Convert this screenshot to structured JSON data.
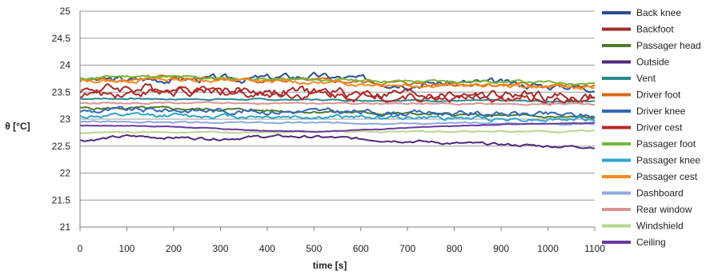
{
  "chart_data": {
    "type": "line",
    "title": "",
    "xlabel": "time [s]",
    "ylabel": "θ [°C]",
    "xlim": [
      0,
      1100
    ],
    "ylim": [
      21,
      25
    ],
    "xticks": [
      "0",
      "100",
      "200",
      "300",
      "400",
      "500",
      "600",
      "700",
      "800",
      "900",
      "1000",
      "1100"
    ],
    "yticks": [
      "21",
      "21.5",
      "22",
      "22.5",
      "23",
      "23.5",
      "24",
      "24.5",
      "25"
    ],
    "grid": "horizontal",
    "legend_position": "right",
    "x": [
      0,
      100,
      200,
      300,
      400,
      500,
      600,
      700,
      800,
      900,
      1000,
      1100
    ],
    "series": [
      {
        "name": "Back knee",
        "color": "#2b4d8f",
        "noise": 0.05,
        "values": [
          23.72,
          23.73,
          23.75,
          23.74,
          23.76,
          23.8,
          23.73,
          23.67,
          23.68,
          23.66,
          23.62,
          23.6
        ]
      },
      {
        "name": "Backfoot",
        "color": "#a02c2c",
        "noise": 0.07,
        "values": [
          23.55,
          23.58,
          23.56,
          23.54,
          23.52,
          23.5,
          23.48,
          23.47,
          23.45,
          23.44,
          23.42,
          23.4
        ]
      },
      {
        "name": "Passager head",
        "color": "#4f7d2a",
        "noise": 0.02,
        "values": [
          23.2,
          23.2,
          23.19,
          23.18,
          23.16,
          23.14,
          23.12,
          23.1,
          23.08,
          23.06,
          23.04,
          23.02
        ]
      },
      {
        "name": "Outside",
        "color": "#52287a",
        "noise": 0.02,
        "values": [
          22.6,
          22.68,
          22.66,
          22.64,
          22.68,
          22.67,
          22.63,
          22.6,
          22.55,
          22.53,
          22.5,
          22.49
        ]
      },
      {
        "name": "Vent",
        "color": "#2b8a8f",
        "noise": 0.01,
        "values": [
          23.38,
          23.38,
          23.37,
          23.37,
          23.36,
          23.36,
          23.35,
          23.35,
          23.34,
          23.34,
          23.33,
          23.33
        ]
      },
      {
        "name": "Driver foot",
        "color": "#d66a1a",
        "noise": 0.03,
        "values": [
          23.72,
          23.74,
          23.76,
          23.74,
          23.72,
          23.7,
          23.68,
          23.66,
          23.65,
          23.64,
          23.62,
          23.6
        ]
      },
      {
        "name": "Driver knee",
        "color": "#3566b5",
        "noise": 0.04,
        "values": [
          23.15,
          23.16,
          23.17,
          23.16,
          23.15,
          23.14,
          23.13,
          23.12,
          23.11,
          23.1,
          23.08,
          23.06
        ]
      },
      {
        "name": "Driver cest",
        "color": "#b52a2a",
        "noise": 0.06,
        "values": [
          23.45,
          23.5,
          23.52,
          23.5,
          23.48,
          23.46,
          23.44,
          23.42,
          23.4,
          23.38,
          23.36,
          23.35
        ]
      },
      {
        "name": "Passager foot",
        "color": "#74b83a",
        "noise": 0.02,
        "values": [
          23.75,
          23.8,
          23.78,
          23.76,
          23.74,
          23.73,
          23.72,
          23.7,
          23.7,
          23.7,
          23.68,
          23.66
        ]
      },
      {
        "name": "Passager knee",
        "color": "#2da6c9",
        "noise": 0.03,
        "values": [
          23.05,
          23.06,
          23.07,
          23.06,
          23.05,
          23.04,
          23.04,
          23.03,
          23.02,
          23.01,
          23.0,
          22.99
        ]
      },
      {
        "name": "Passager cest",
        "color": "#f28a24",
        "noise": 0.03,
        "values": [
          23.7,
          23.72,
          23.74,
          23.72,
          23.7,
          23.68,
          23.66,
          23.64,
          23.63,
          23.62,
          23.6,
          23.58
        ]
      },
      {
        "name": "Dashboard",
        "color": "#8fa9db",
        "noise": 0.01,
        "values": [
          22.95,
          22.95,
          22.94,
          22.94,
          22.93,
          22.93,
          22.93,
          22.92,
          22.92,
          22.92,
          22.91,
          22.91
        ]
      },
      {
        "name": "Rear window",
        "color": "#d99494",
        "noise": 0.01,
        "values": [
          23.3,
          23.3,
          23.3,
          23.3,
          23.29,
          23.29,
          23.29,
          23.29,
          23.28,
          23.28,
          23.28,
          23.28
        ]
      },
      {
        "name": "Windshield",
        "color": "#b7d68e",
        "noise": 0.01,
        "values": [
          22.75,
          22.75,
          22.76,
          22.76,
          22.76,
          22.77,
          22.77,
          22.77,
          22.77,
          22.77,
          22.77,
          22.78
        ]
      },
      {
        "name": "Ceiling",
        "color": "#6a3a9e",
        "noise": 0.005,
        "values": [
          22.88,
          22.88,
          22.86,
          22.82,
          22.78,
          22.77,
          22.8,
          22.84,
          22.87,
          22.9,
          22.92,
          22.93
        ]
      }
    ]
  }
}
